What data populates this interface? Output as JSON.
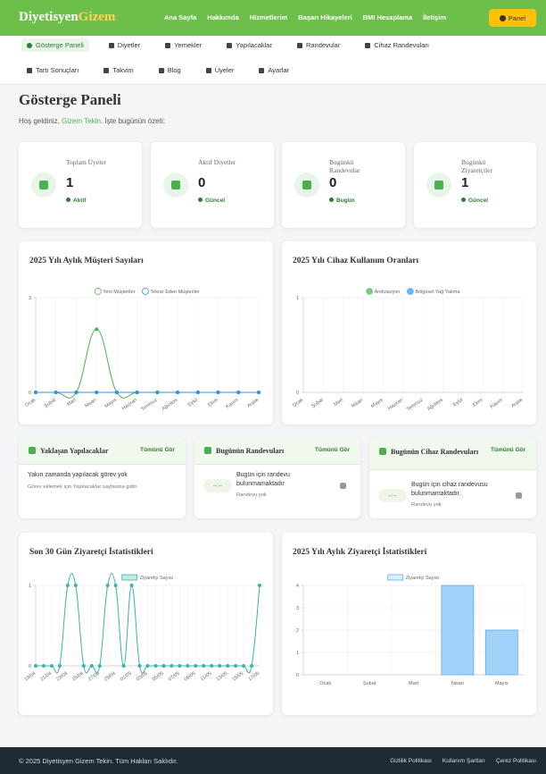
{
  "navbar": {
    "brand": "Diyetisyen",
    "brand_accent": "Gizem",
    "links": [
      "Ana Sayfa",
      "Hakkımda",
      "Hizmetlerim",
      "Başarı Hikayeleri",
      "BMI Hesaplama",
      "İletişim"
    ],
    "button": "Panel"
  },
  "submenu": [
    "Gösterge Paneli",
    "Diyetler",
    "Yemekler",
    "Yapılacaklar",
    "Randevular",
    "Cihaz Randevuları",
    "Tartı Sonuçları",
    "Takvim",
    "Blog",
    "Üyeler",
    "Ayarlar"
  ],
  "header": {
    "title": "Gösterge Paneli",
    "welcome": "Hoş geldiniz,",
    "name": "Gizem Tekin",
    "welcome_end": ". İşte bugünün özeti:"
  },
  "stats": [
    {
      "label": "Toplam Üyeler",
      "value": 1,
      "note": "Aktif"
    },
    {
      "label": "Aktif Diyetler",
      "value": 0,
      "note": "Güncel"
    },
    {
      "label": "Bugünkü Randevular",
      "value": 0,
      "note": "Bugün"
    },
    {
      "label": "Bugünkü Ziyaretçiler",
      "value": 1,
      "note": "Güncel"
    }
  ],
  "chart_data": [
    {
      "type": "line",
      "title": "2025 Yılı Aylık Müşteri Sayıları",
      "categories": [
        "Ocak",
        "Şubat",
        "Mart",
        "Nisan",
        "Mayıs",
        "Haziran",
        "Temmuz",
        "Ağustos",
        "Eylül",
        "Ekim",
        "Kasım",
        "Aralık"
      ],
      "series": [
        {
          "name": "Yeni Müşteriler",
          "color": "#4caf50",
          "values": [
            0,
            0,
            0,
            2,
            0,
            0,
            0,
            0,
            0,
            0,
            0,
            0
          ]
        },
        {
          "name": "Tekrar Eden Müşteriler",
          "color": "#2196f3",
          "values": [
            0,
            0,
            0,
            0,
            0,
            0,
            0,
            0,
            0,
            0,
            0,
            0
          ]
        }
      ],
      "ylim": [
        0,
        3
      ],
      "yticks": [
        0,
        3
      ],
      "grid": true,
      "smooth": true,
      "legend_marker": "circle-outline"
    },
    {
      "type": "line",
      "title": "2025 Yılı Cihaz Kullanım Oranları",
      "categories": [
        "Ocak",
        "Şubat",
        "Mart",
        "Nisan",
        "Mayıs",
        "Haziran",
        "Temmuz",
        "Ağustos",
        "Eylül",
        "Ekim",
        "Kasım",
        "Aralık"
      ],
      "series": [
        {
          "name": "Andulasyon",
          "color": "#81c784",
          "values": [
            null,
            null,
            null,
            null,
            null,
            null,
            null,
            null,
            null,
            null,
            null,
            null
          ]
        },
        {
          "name": "Bölgesel Yağ Yakma",
          "color": "#64b5f6",
          "values": [
            null,
            null,
            null,
            null,
            null,
            null,
            null,
            null,
            null,
            null,
            null,
            null
          ]
        }
      ],
      "ylim": [
        0,
        1
      ],
      "yticks": [
        0,
        1
      ],
      "grid": true,
      "smooth": true,
      "legend_marker": "circle"
    },
    {
      "type": "line",
      "title": "Son 30 Gün Ziyaretçi İstatistikleri",
      "categories": [
        "19/04",
        null,
        "21/04",
        null,
        "23/04",
        null,
        "25/04",
        null,
        "27/04",
        null,
        "29/04",
        null,
        "01/05",
        null,
        "03/05",
        null,
        "05/05",
        null,
        "07/05",
        null,
        "09/05",
        null,
        "11/05",
        null,
        "13/05",
        null,
        "15/05",
        null,
        "17/05"
      ],
      "series": [
        {
          "name": "Ziyaretçi Sayısı",
          "color": "#3bb3a6",
          "values": [
            0,
            0,
            0,
            0,
            1,
            1,
            0,
            0,
            0,
            1,
            1,
            0,
            1,
            0,
            0,
            0,
            0,
            0,
            0,
            0,
            0,
            0,
            0,
            0,
            0,
            0,
            0,
            0,
            1
          ]
        }
      ],
      "ylim": [
        0,
        1
      ],
      "yticks": [
        0,
        1
      ],
      "grid": true,
      "smooth": true,
      "legend_marker": "box"
    },
    {
      "type": "bar",
      "title": "2025 Yılı Aylık Ziyaretçi İstatistikleri",
      "categories": [
        "Ocak",
        "Şubat",
        "Mart",
        "Nisan",
        "Mayıs"
      ],
      "series": [
        {
          "name": "Ziyaretçi Sayısı",
          "color": "#90caf9",
          "border_color": "#5aaee8",
          "values": [
            0,
            0,
            0,
            4,
            2
          ]
        }
      ],
      "ylim": [
        0,
        4
      ],
      "yticks": [
        0,
        1,
        2,
        3,
        4
      ],
      "grid": true,
      "legend_marker": "box"
    }
  ],
  "panels": [
    {
      "title": "Yaklaşan Yapılacaklar",
      "link": "Tümünü Gör",
      "message": "Yakın zamanda yapılacak görev yok",
      "detail": "Görev eklemek için Yapılacaklar sayfasına gidin"
    },
    {
      "title": "Bugünün Randevuları",
      "link": "Tümünü Gör",
      "time": "--:--",
      "message": "Bugün için randevu bulunmamaktadır",
      "detail": "Randevu yok"
    },
    {
      "title": "Bugünün Cihaz Randevuları",
      "link": "Tümünü Gör",
      "time": "--:--",
      "message": "Bugün için cihaz randevusu bulunmamaktadır.",
      "detail": "Randevu yok"
    }
  ],
  "footer": {
    "copyright": "© 2025 Diyetisyen Gizem Tekin. Tüm Hakları Saklıdır.",
    "links": [
      "Gizlilik Politikası",
      "Kullanım Şartları",
      "Çerez Politikası"
    ]
  }
}
